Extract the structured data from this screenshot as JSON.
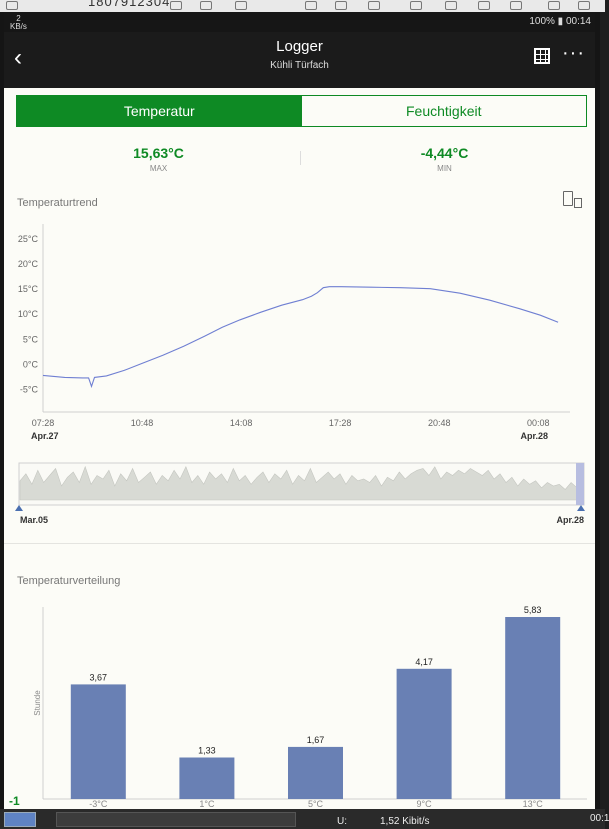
{
  "statusbar": {
    "left_top": "2",
    "left_bottom": "KB/s",
    "right": "100% ▮ 00:14"
  },
  "appbar": {
    "title": "Logger",
    "subtitle": "Kühli Türfach"
  },
  "tabs": [
    {
      "label": "Temperatur",
      "active": true
    },
    {
      "label": "Feuchtigkeit",
      "active": false
    }
  ],
  "stats": {
    "max": {
      "value": "15,63°C",
      "label": "MAX"
    },
    "min": {
      "value": "-4,44°C",
      "label": "MIN"
    }
  },
  "trend": {
    "title": "Temperaturtrend",
    "date_start": "Apr.27",
    "date_end": "Apr.28"
  },
  "navigator": {
    "date_start": "Mar.05",
    "date_end": "Apr.28"
  },
  "distribution": {
    "title": "Temperaturverteilung"
  },
  "colors": {
    "accent": "#0e8a24",
    "line": "#6f7fd2",
    "bar": "#6980b4",
    "nav_fill": "#d8dad4"
  },
  "taskbar": {
    "u_label": "U:",
    "rate": "1,52 Kibit/s",
    "clock": "00:1"
  },
  "chart_data": [
    {
      "type": "line",
      "name": "trend",
      "yticks": [
        "25°C",
        "20°C",
        "15°C",
        "10°C",
        "5°C",
        "0°C",
        "-5°C"
      ],
      "ytick_values": [
        25,
        20,
        15,
        10,
        5,
        0,
        -5
      ],
      "ylim": [
        -9.5,
        28
      ],
      "xticks": [
        "07:28",
        "10:48",
        "14:08",
        "17:28",
        "20:48",
        "00:08"
      ],
      "xtick_hours": [
        7.467,
        10.8,
        14.133,
        17.467,
        20.8,
        24.133
      ],
      "xlim": [
        7.467,
        25.2
      ],
      "x_hours": [
        7.467,
        8.2,
        8.8,
        9.0,
        9.1,
        9.2,
        9.6,
        10.2,
        10.8,
        11.5,
        12.2,
        12.9,
        13.5,
        14.1,
        14.8,
        15.5,
        16.2,
        16.5,
        16.7,
        16.9,
        17.1,
        17.5,
        18.5,
        19.5,
        20.5,
        21.5,
        22.5,
        23.5,
        24.2,
        24.8
      ],
      "y_values": [
        -2.2,
        -2.6,
        -2.7,
        -2.7,
        -4.4,
        -2.6,
        -2.3,
        -1.2,
        0.2,
        1.8,
        3.6,
        5.6,
        7.4,
        8.9,
        10.4,
        11.8,
        12.9,
        13.6,
        14.3,
        15.3,
        15.5,
        15.5,
        15.4,
        15.3,
        15.1,
        14.2,
        12.8,
        11.1,
        9.8,
        8.4
      ]
    },
    {
      "type": "area",
      "name": "navigator",
      "values": [
        0.55,
        0.75,
        0.45,
        0.85,
        0.5,
        0.7,
        0.9,
        0.4,
        0.65,
        0.8,
        0.5,
        0.95,
        0.45,
        0.7,
        0.6,
        0.85,
        0.4,
        0.75,
        0.55,
        0.9,
        0.5,
        0.65,
        0.8,
        0.45,
        0.7,
        0.55,
        0.85,
        0.6,
        0.95,
        0.5,
        0.7,
        0.45,
        0.8,
        0.6,
        0.75,
        0.5,
        0.9,
        0.55,
        0.7,
        0.45,
        0.65,
        0.8,
        0.5,
        0.75,
        0.6,
        0.85,
        0.45,
        0.7,
        0.55,
        0.9,
        0.5,
        0.65,
        0.8,
        0.6,
        0.75,
        0.45,
        0.7,
        0.55,
        0.6,
        0.5,
        0.7,
        0.4,
        0.65,
        0.55,
        0.8,
        0.6,
        0.75,
        0.85,
        0.9,
        0.7,
        0.95,
        0.6,
        0.8,
        0.7,
        0.85,
        0.75,
        0.9,
        0.8,
        0.7,
        0.85,
        0.6,
        0.75,
        0.5,
        0.65,
        0.4,
        0.6,
        0.45,
        0.55,
        0.35,
        0.5,
        0.4,
        0.45,
        0.3,
        0.5,
        0.35,
        0.45
      ]
    },
    {
      "type": "bar",
      "name": "distribution",
      "categories": [
        "-3°C",
        "1°C",
        "5°C",
        "9°C",
        "13°C"
      ],
      "values": [
        3.67,
        1.33,
        1.67,
        4.17,
        5.83
      ],
      "value_labels": [
        "3,67",
        "1,33",
        "1,67",
        "4,17",
        "5,83"
      ],
      "ylabel": "Stunde",
      "ylim": [
        0,
        6.15
      ],
      "axis_marker": "-1"
    }
  ]
}
